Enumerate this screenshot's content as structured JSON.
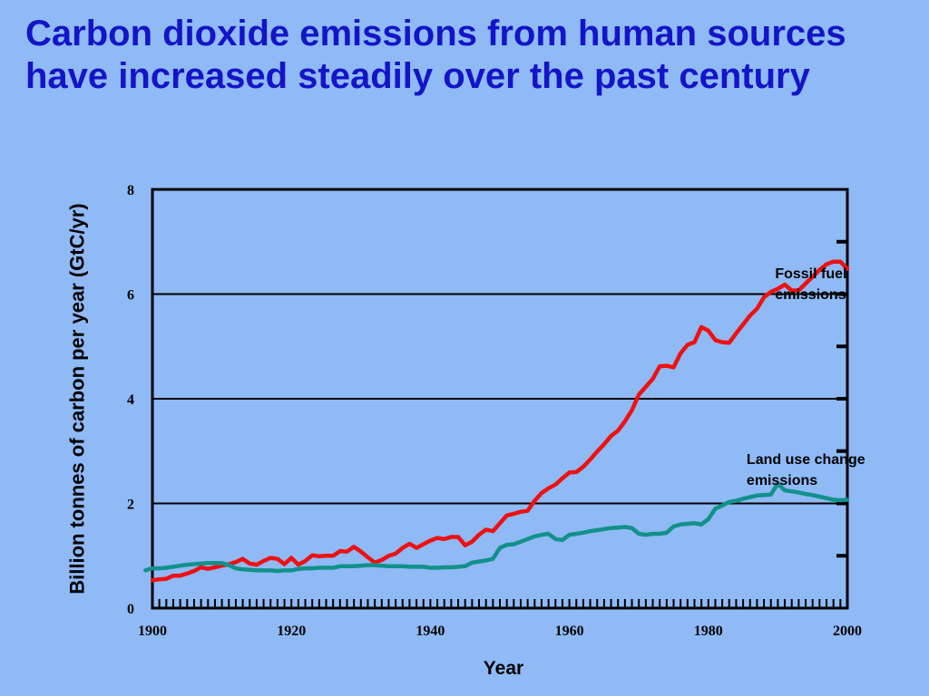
{
  "chart_data": {
    "type": "line",
    "title": "Carbon dioxide emissions from human sources have increased steadily over the past century",
    "xlabel": "Year",
    "ylabel": "Billion tonnes of carbon per year (GtC/yr)",
    "xlim": [
      1900,
      2000
    ],
    "ylim": [
      0,
      8
    ],
    "x_ticks": [
      1900,
      1920,
      1940,
      1960,
      1980,
      2000
    ],
    "y_ticks": [
      0,
      2,
      4,
      6,
      8
    ],
    "grid": "horizontal",
    "legend": "none",
    "series": [
      {
        "name": "Fossil fuel emissions",
        "color": "#ee1111",
        "points": [
          [
            1900,
            0.53
          ],
          [
            1901,
            0.55
          ],
          [
            1902,
            0.56
          ],
          [
            1903,
            0.62
          ],
          [
            1904,
            0.62
          ],
          [
            1905,
            0.66
          ],
          [
            1906,
            0.71
          ],
          [
            1907,
            0.78
          ],
          [
            1908,
            0.75
          ],
          [
            1909,
            0.78
          ],
          [
            1910,
            0.81
          ],
          [
            1911,
            0.84
          ],
          [
            1912,
            0.88
          ],
          [
            1913,
            0.94
          ],
          [
            1914,
            0.85
          ],
          [
            1915,
            0.83
          ],
          [
            1916,
            0.9
          ],
          [
            1917,
            0.96
          ],
          [
            1918,
            0.94
          ],
          [
            1919,
            0.84
          ],
          [
            1920,
            0.96
          ],
          [
            1921,
            0.83
          ],
          [
            1922,
            0.9
          ],
          [
            1923,
            1.01
          ],
          [
            1924,
            0.99
          ],
          [
            1925,
            1.0
          ],
          [
            1926,
            1.0
          ],
          [
            1927,
            1.09
          ],
          [
            1928,
            1.08
          ],
          [
            1929,
            1.17
          ],
          [
            1930,
            1.08
          ],
          [
            1931,
            0.97
          ],
          [
            1932,
            0.87
          ],
          [
            1933,
            0.92
          ],
          [
            1934,
            1.0
          ],
          [
            1935,
            1.04
          ],
          [
            1936,
            1.15
          ],
          [
            1937,
            1.23
          ],
          [
            1938,
            1.15
          ],
          [
            1939,
            1.22
          ],
          [
            1940,
            1.29
          ],
          [
            1941,
            1.34
          ],
          [
            1942,
            1.32
          ],
          [
            1943,
            1.36
          ],
          [
            1944,
            1.36
          ],
          [
            1945,
            1.2
          ],
          [
            1946,
            1.27
          ],
          [
            1947,
            1.4
          ],
          [
            1948,
            1.5
          ],
          [
            1949,
            1.47
          ],
          [
            1950,
            1.62
          ],
          [
            1951,
            1.77
          ],
          [
            1952,
            1.8
          ],
          [
            1953,
            1.84
          ],
          [
            1954,
            1.86
          ],
          [
            1955,
            2.05
          ],
          [
            1956,
            2.2
          ],
          [
            1957,
            2.29
          ],
          [
            1958,
            2.36
          ],
          [
            1959,
            2.48
          ],
          [
            1960,
            2.59
          ],
          [
            1961,
            2.6
          ],
          [
            1962,
            2.7
          ],
          [
            1963,
            2.84
          ],
          [
            1964,
            2.99
          ],
          [
            1965,
            3.13
          ],
          [
            1966,
            3.29
          ],
          [
            1967,
            3.39
          ],
          [
            1968,
            3.57
          ],
          [
            1969,
            3.78
          ],
          [
            1970,
            4.08
          ],
          [
            1971,
            4.23
          ],
          [
            1972,
            4.38
          ],
          [
            1973,
            4.62
          ],
          [
            1974,
            4.63
          ],
          [
            1975,
            4.6
          ],
          [
            1976,
            4.87
          ],
          [
            1977,
            5.03
          ],
          [
            1978,
            5.08
          ],
          [
            1979,
            5.37
          ],
          [
            1980,
            5.3
          ],
          [
            1981,
            5.12
          ],
          [
            1982,
            5.08
          ],
          [
            1983,
            5.07
          ],
          [
            1984,
            5.25
          ],
          [
            1985,
            5.42
          ],
          [
            1986,
            5.59
          ],
          [
            1987,
            5.72
          ],
          [
            1988,
            5.94
          ],
          [
            1989,
            6.04
          ],
          [
            1990,
            6.1
          ],
          [
            1991,
            6.18
          ],
          [
            1992,
            6.07
          ],
          [
            1993,
            6.07
          ],
          [
            1994,
            6.2
          ],
          [
            1995,
            6.33
          ],
          [
            1996,
            6.46
          ],
          [
            1997,
            6.57
          ],
          [
            1998,
            6.62
          ],
          [
            1999,
            6.62
          ],
          [
            2000,
            6.48
          ]
        ]
      },
      {
        "name": "Land use change emissions",
        "color": "#11918a",
        "points": [
          [
            1899,
            0.72
          ],
          [
            1900,
            0.76
          ],
          [
            1901,
            0.76
          ],
          [
            1902,
            0.77
          ],
          [
            1903,
            0.79
          ],
          [
            1904,
            0.81
          ],
          [
            1905,
            0.83
          ],
          [
            1906,
            0.84
          ],
          [
            1907,
            0.85
          ],
          [
            1908,
            0.86
          ],
          [
            1909,
            0.86
          ],
          [
            1910,
            0.86
          ],
          [
            1911,
            0.82
          ],
          [
            1912,
            0.76
          ],
          [
            1913,
            0.74
          ],
          [
            1914,
            0.73
          ],
          [
            1915,
            0.72
          ],
          [
            1916,
            0.72
          ],
          [
            1917,
            0.72
          ],
          [
            1918,
            0.71
          ],
          [
            1919,
            0.72
          ],
          [
            1920,
            0.72
          ],
          [
            1921,
            0.75
          ],
          [
            1922,
            0.76
          ],
          [
            1923,
            0.76
          ],
          [
            1924,
            0.77
          ],
          [
            1925,
            0.77
          ],
          [
            1926,
            0.77
          ],
          [
            1927,
            0.8
          ],
          [
            1928,
            0.8
          ],
          [
            1929,
            0.8
          ],
          [
            1930,
            0.81
          ],
          [
            1931,
            0.82
          ],
          [
            1932,
            0.82
          ],
          [
            1933,
            0.81
          ],
          [
            1934,
            0.8
          ],
          [
            1935,
            0.8
          ],
          [
            1936,
            0.8
          ],
          [
            1937,
            0.79
          ],
          [
            1938,
            0.79
          ],
          [
            1939,
            0.79
          ],
          [
            1940,
            0.77
          ],
          [
            1941,
            0.77
          ],
          [
            1942,
            0.78
          ],
          [
            1943,
            0.78
          ],
          [
            1944,
            0.79
          ],
          [
            1945,
            0.8
          ],
          [
            1946,
            0.87
          ],
          [
            1947,
            0.89
          ],
          [
            1948,
            0.91
          ],
          [
            1949,
            0.94
          ],
          [
            1950,
            1.15
          ],
          [
            1951,
            1.21
          ],
          [
            1952,
            1.22
          ],
          [
            1953,
            1.27
          ],
          [
            1954,
            1.32
          ],
          [
            1955,
            1.37
          ],
          [
            1956,
            1.4
          ],
          [
            1957,
            1.42
          ],
          [
            1958,
            1.32
          ],
          [
            1959,
            1.3
          ],
          [
            1960,
            1.4
          ],
          [
            1961,
            1.42
          ],
          [
            1962,
            1.44
          ],
          [
            1963,
            1.47
          ],
          [
            1964,
            1.49
          ],
          [
            1965,
            1.51
          ],
          [
            1966,
            1.53
          ],
          [
            1967,
            1.54
          ],
          [
            1968,
            1.55
          ],
          [
            1969,
            1.53
          ],
          [
            1970,
            1.42
          ],
          [
            1971,
            1.4
          ],
          [
            1972,
            1.42
          ],
          [
            1973,
            1.42
          ],
          [
            1974,
            1.44
          ],
          [
            1975,
            1.56
          ],
          [
            1976,
            1.6
          ],
          [
            1977,
            1.61
          ],
          [
            1978,
            1.62
          ],
          [
            1979,
            1.6
          ],
          [
            1980,
            1.7
          ],
          [
            1981,
            1.9
          ],
          [
            1982,
            1.96
          ],
          [
            1983,
            2.03
          ],
          [
            1984,
            2.05
          ],
          [
            1985,
            2.09
          ],
          [
            1986,
            2.12
          ],
          [
            1987,
            2.15
          ],
          [
            1988,
            2.16
          ],
          [
            1989,
            2.17
          ],
          [
            1990,
            2.38
          ],
          [
            1991,
            2.25
          ],
          [
            1992,
            2.23
          ],
          [
            1993,
            2.21
          ],
          [
            1994,
            2.18
          ],
          [
            1995,
            2.16
          ],
          [
            1996,
            2.13
          ],
          [
            1997,
            2.1
          ],
          [
            1998,
            2.07
          ],
          [
            1999,
            2.06
          ],
          [
            2000,
            2.07
          ]
        ]
      }
    ],
    "annotations": [
      {
        "lines": [
          "Fossil fuel",
          "emissions"
        ],
        "x": 1989.6,
        "y": 6.3
      },
      {
        "lines": [
          "Land use change",
          "emissions"
        ],
        "x": 1985.5,
        "y": 2.75
      }
    ]
  }
}
